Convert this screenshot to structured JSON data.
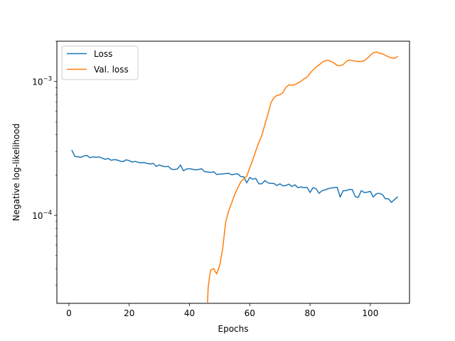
{
  "chart_data": {
    "type": "line",
    "xlabel": "Epochs",
    "ylabel": "Negative log-likelihood",
    "xlim": [
      -4,
      113
    ],
    "ylim": [
      2.2e-05,
      0.002
    ],
    "yscale": "log",
    "x_ticks": [
      0,
      20,
      40,
      60,
      80,
      100
    ],
    "y_ticks": [
      {
        "value": 0.0001,
        "base": "10",
        "exp": "−4"
      },
      {
        "value": 0.001,
        "base": "10",
        "exp": "−3"
      }
    ],
    "grid": false,
    "legend_position": "top-left",
    "series": [
      {
        "name": "Loss",
        "color": "#1f77b4",
        "points": [
          [
            1,
            0.000305
          ],
          [
            2,
            0.000275
          ],
          [
            3,
            0.000274
          ],
          [
            4,
            0.000271
          ],
          [
            5,
            0.000278
          ],
          [
            6,
            0.00028
          ],
          [
            7,
            0.00027
          ],
          [
            8,
            0.000273
          ],
          [
            9,
            0.000272
          ],
          [
            10,
            0.000273
          ],
          [
            11,
            0.000268
          ],
          [
            12,
            0.000262
          ],
          [
            13,
            0.000266
          ],
          [
            14,
            0.000258
          ],
          [
            15,
            0.000261
          ],
          [
            16,
            0.000259
          ],
          [
            17,
            0.000254
          ],
          [
            18,
            0.000252
          ],
          [
            19,
            0.00026
          ],
          [
            20,
            0.000256
          ],
          [
            21,
            0.00025
          ],
          [
            22,
            0.000253
          ],
          [
            23,
            0.000249
          ],
          [
            24,
            0.000247
          ],
          [
            25,
            0.000248
          ],
          [
            26,
            0.000244
          ],
          [
            27,
            0.000242
          ],
          [
            28,
            0.000244
          ],
          [
            29,
            0.000232
          ],
          [
            30,
            0.000238
          ],
          [
            31,
            0.000233
          ],
          [
            32,
            0.000231
          ],
          [
            33,
            0.000232
          ],
          [
            34,
            0.000221
          ],
          [
            35,
            0.00022
          ],
          [
            36,
            0.000222
          ],
          [
            37,
            0.000238
          ],
          [
            38,
            0.000215
          ],
          [
            39,
            0.000222
          ],
          [
            40,
            0.000223
          ],
          [
            41,
            0.000221
          ],
          [
            42,
            0.000219
          ],
          [
            43,
            0.00022
          ],
          [
            44,
            0.000223
          ],
          [
            45,
            0.000212
          ],
          [
            46,
            0.000211
          ],
          [
            47,
            0.000209
          ],
          [
            48,
            0.000212
          ],
          [
            49,
            0.000202
          ],
          [
            50,
            0.000203
          ],
          [
            51,
            0.000204
          ],
          [
            52,
            0.000205
          ],
          [
            53,
            0.000206
          ],
          [
            54,
            0.000201
          ],
          [
            55,
            0.000203
          ],
          [
            56,
            0.000204
          ],
          [
            57,
            0.000195
          ],
          [
            58,
            0.000194
          ],
          [
            59,
            0.000175
          ],
          [
            60,
            0.000192
          ],
          [
            61,
            0.000186
          ],
          [
            62,
            0.000189
          ],
          [
            63,
            0.000172
          ],
          [
            64,
            0.000172
          ],
          [
            65,
            0.000182
          ],
          [
            66,
            0.000175
          ],
          [
            67,
            0.000173
          ],
          [
            68,
            0.000173
          ],
          [
            69,
            0.000167
          ],
          [
            70,
            0.000172
          ],
          [
            71,
            0.000166
          ],
          [
            72,
            0.000167
          ],
          [
            73,
            0.000171
          ],
          [
            74,
            0.000164
          ],
          [
            75,
            0.000169
          ],
          [
            76,
            0.000161
          ],
          [
            77,
            0.000163
          ],
          [
            78,
            0.000161
          ],
          [
            79,
            0.000162
          ],
          [
            80,
            0.000148
          ],
          [
            81,
            0.000161
          ],
          [
            82,
            0.000158
          ],
          [
            83,
            0.000146
          ],
          [
            84,
            0.000153
          ],
          [
            85,
            0.000155
          ],
          [
            86,
            0.000158
          ],
          [
            87,
            0.00016
          ],
          [
            88,
            0.000161
          ],
          [
            89,
            0.000162
          ],
          [
            90,
            0.000137
          ],
          [
            91,
            0.000153
          ],
          [
            92,
            0.000153
          ],
          [
            93,
            0.000156
          ],
          [
            94,
            0.000156
          ],
          [
            95,
            0.000138
          ],
          [
            96,
            0.000136
          ],
          [
            97,
            0.000153
          ],
          [
            98,
            0.000148
          ],
          [
            99,
            0.000149
          ],
          [
            100,
            0.000151
          ],
          [
            101,
            0.000137
          ],
          [
            102,
            0.000145
          ],
          [
            103,
            0.000146
          ],
          [
            104,
            0.000143
          ],
          [
            105,
            0.000133
          ],
          [
            106,
            0.000133
          ],
          [
            107,
            0.000125
          ],
          [
            108,
            0.000131
          ],
          [
            109,
            0.000137
          ]
        ]
      },
      {
        "name": "Val. loss",
        "color": "#ff7f0e",
        "points": [
          [
            46,
            2.25e-05
          ],
          [
            46.2,
            2.9e-05
          ],
          [
            46.6,
            3.4e-05
          ],
          [
            47,
            3.9e-05
          ],
          [
            48,
            4e-05
          ],
          [
            49,
            3.65e-05
          ],
          [
            50,
            4.2e-05
          ],
          [
            51,
            5.6e-05
          ],
          [
            52,
            8.9e-05
          ],
          [
            53,
            0.000108
          ],
          [
            54,
            0.000124
          ],
          [
            55,
            0.000143
          ],
          [
            56,
            0.00016
          ],
          [
            57,
            0.000178
          ],
          [
            58,
            0.000187
          ],
          [
            59,
            0.000196
          ],
          [
            60,
            0.000227
          ],
          [
            61,
            0.00026
          ],
          [
            62,
            0.000303
          ],
          [
            63,
            0.00035
          ],
          [
            64,
            0.000395
          ],
          [
            65,
            0.000475
          ],
          [
            66,
            0.000568
          ],
          [
            67,
            0.00069
          ],
          [
            68,
            0.000758
          ],
          [
            69,
            0.000785
          ],
          [
            70,
            0.000796
          ],
          [
            71,
            0.000826
          ],
          [
            72,
            0.000903
          ],
          [
            73,
            0.000945
          ],
          [
            74,
            0.000938
          ],
          [
            75,
            0.000948
          ],
          [
            76,
            0.000975
          ],
          [
            77,
            0.001005
          ],
          [
            78,
            0.001045
          ],
          [
            79,
            0.001078
          ],
          [
            80,
            0.00115
          ],
          [
            81,
            0.00122
          ],
          [
            82,
            0.00128
          ],
          [
            83,
            0.00133
          ],
          [
            84,
            0.00139
          ],
          [
            85,
            0.00143
          ],
          [
            86,
            0.00144
          ],
          [
            87,
            0.00141
          ],
          [
            88,
            0.00137
          ],
          [
            89,
            0.00132
          ],
          [
            90,
            0.00131
          ],
          [
            91,
            0.00134
          ],
          [
            92,
            0.00141
          ],
          [
            93,
            0.00145
          ],
          [
            94,
            0.00143
          ],
          [
            95,
            0.00142
          ],
          [
            96,
            0.00141
          ],
          [
            97,
            0.00141
          ],
          [
            98,
            0.00143
          ],
          [
            99,
            0.00149
          ],
          [
            100,
            0.00157
          ],
          [
            101,
            0.00164
          ],
          [
            102,
            0.00166
          ],
          [
            103,
            0.00163
          ],
          [
            104,
            0.00161
          ],
          [
            105,
            0.00157
          ],
          [
            106,
            0.00153
          ],
          [
            107,
            0.0015
          ],
          [
            108,
            0.00149
          ],
          [
            109,
            0.00153
          ]
        ]
      }
    ]
  }
}
